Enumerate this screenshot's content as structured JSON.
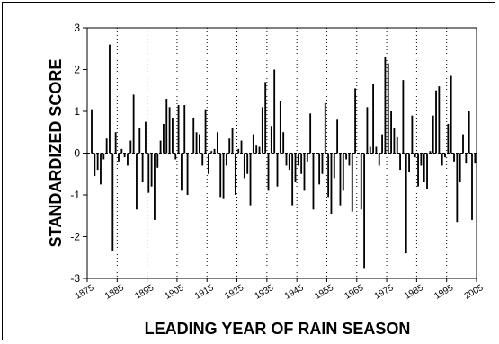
{
  "chart_data": {
    "type": "bar",
    "title": "",
    "xlabel": "LEADING YEAR OF RAIN SEASON",
    "ylabel": "STANDARDIZED SCORE",
    "xlim": [
      1875,
      2005
    ],
    "ylim": [
      -3,
      3
    ],
    "yticks": [
      -3,
      -2,
      -1,
      0,
      1,
      2,
      3
    ],
    "xticks": [
      1875,
      1885,
      1895,
      1905,
      1915,
      1925,
      1935,
      1945,
      1955,
      1965,
      1975,
      1985,
      1995,
      2005
    ],
    "grid": "vertical dotted lines at x ticks; dashed zero line",
    "x": [
      1875,
      1876,
      1877,
      1878,
      1879,
      1880,
      1881,
      1882,
      1883,
      1884,
      1885,
      1886,
      1887,
      1888,
      1889,
      1890,
      1891,
      1892,
      1893,
      1894,
      1895,
      1896,
      1897,
      1898,
      1899,
      1900,
      1901,
      1902,
      1903,
      1904,
      1905,
      1906,
      1907,
      1908,
      1909,
      1910,
      1911,
      1912,
      1913,
      1914,
      1915,
      1916,
      1917,
      1918,
      1919,
      1920,
      1921,
      1922,
      1923,
      1924,
      1925,
      1926,
      1927,
      1928,
      1929,
      1930,
      1931,
      1932,
      1933,
      1934,
      1935,
      1936,
      1937,
      1938,
      1939,
      1940,
      1941,
      1942,
      1943,
      1944,
      1945,
      1946,
      1947,
      1948,
      1949,
      1950,
      1951,
      1952,
      1953,
      1954,
      1955,
      1956,
      1957,
      1958,
      1959,
      1960,
      1961,
      1962,
      1963,
      1964,
      1965,
      1966,
      1967,
      1968,
      1969,
      1970,
      1971,
      1972,
      1973,
      1974,
      1975,
      1976,
      1977,
      1978,
      1979,
      1980,
      1981,
      1982,
      1983,
      1984,
      1985,
      1986,
      1987,
      1988,
      1989,
      1990,
      1991,
      1992,
      1993,
      1994,
      1995,
      1996,
      1997,
      1998,
      1999,
      2000,
      2001,
      2002,
      2003,
      2004
    ],
    "values": [
      0.0,
      1.05,
      -0.55,
      -0.4,
      -0.75,
      -0.15,
      0.35,
      2.6,
      -2.35,
      0.5,
      -0.2,
      0.1,
      -0.1,
      -0.3,
      0.3,
      1.4,
      -1.35,
      0.6,
      -0.7,
      0.75,
      -0.95,
      -0.8,
      -1.6,
      -0.35,
      0.3,
      0.7,
      1.3,
      1.1,
      0.85,
      -0.15,
      1.15,
      -0.9,
      1.15,
      -1.0,
      0.0,
      0.85,
      0.5,
      0.45,
      -0.3,
      1.05,
      -0.5,
      0.05,
      0.1,
      0.5,
      -1.05,
      -1.1,
      -0.3,
      0.35,
      0.6,
      -1.0,
      0.1,
      0.3,
      -0.6,
      -0.5,
      -1.25,
      0.45,
      0.2,
      0.15,
      1.1,
      1.7,
      -0.9,
      0.65,
      2.0,
      -0.8,
      1.25,
      0.5,
      -0.3,
      -0.4,
      -1.25,
      -0.7,
      -0.3,
      -0.5,
      -0.9,
      -0.2,
      0.95,
      -1.35,
      0.0,
      -0.75,
      -0.5,
      1.2,
      -1.05,
      -1.45,
      -0.6,
      0.8,
      -1.25,
      -0.9,
      -0.15,
      -0.3,
      -1.4,
      1.55,
      0.0,
      -1.35,
      -2.75,
      1.1,
      0.15,
      1.65,
      0.15,
      -0.3,
      0.45,
      2.3,
      2.15,
      1.0,
      0.6,
      0.4,
      -0.4,
      1.75,
      -2.4,
      -0.45,
      0.9,
      -0.1,
      -0.8,
      -0.3,
      -0.7,
      -0.85,
      0.05,
      0.9,
      1.5,
      1.6,
      -0.3,
      -0.1,
      0.7,
      1.85,
      -0.2,
      -1.65,
      -0.7,
      0.45,
      -0.25,
      1.0,
      -1.6,
      -0.25
    ]
  }
}
